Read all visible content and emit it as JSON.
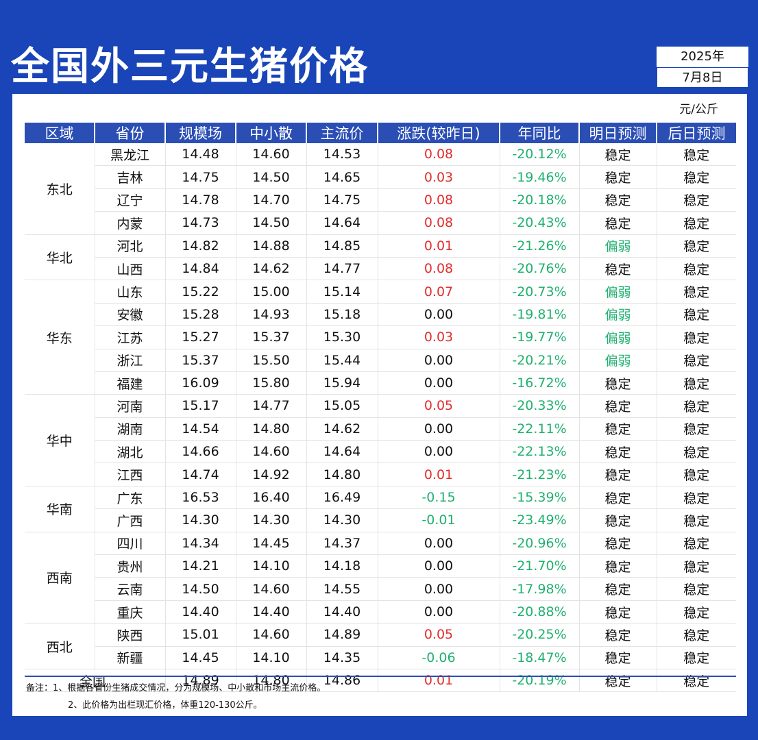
{
  "title": "全国外三元生猪价格",
  "date": {
    "year": "2025年",
    "day": "7月8日"
  },
  "unit": "元/公斤",
  "headers": [
    "区域",
    "省份",
    "规模场",
    "中小散",
    "主流价",
    "涨跌(较昨日)",
    "年同比",
    "明日预测",
    "后日预测"
  ],
  "colors": {
    "up": "#e22d2d",
    "down": "#20b070",
    "header_bg": "#2a4eb4",
    "page_bg": "#1a45b8"
  },
  "regions": [
    {
      "name": "东北",
      "rows": [
        {
          "province": "黑龙江",
          "large": "14.48",
          "small": "14.60",
          "main": "14.53",
          "change": "0.08",
          "change_dir": "up",
          "yoy": "-20.12%",
          "tomorrow": "稳定",
          "tomorrow_dir": "flat",
          "after": "稳定"
        },
        {
          "province": "吉林",
          "large": "14.75",
          "small": "14.50",
          "main": "14.65",
          "change": "0.03",
          "change_dir": "up",
          "yoy": "-19.46%",
          "tomorrow": "稳定",
          "tomorrow_dir": "flat",
          "after": "稳定"
        },
        {
          "province": "辽宁",
          "large": "14.78",
          "small": "14.70",
          "main": "14.75",
          "change": "0.08",
          "change_dir": "up",
          "yoy": "-20.18%",
          "tomorrow": "稳定",
          "tomorrow_dir": "flat",
          "after": "稳定"
        },
        {
          "province": "内蒙",
          "large": "14.73",
          "small": "14.50",
          "main": "14.64",
          "change": "0.08",
          "change_dir": "up",
          "yoy": "-20.43%",
          "tomorrow": "稳定",
          "tomorrow_dir": "flat",
          "after": "稳定"
        }
      ]
    },
    {
      "name": "华北",
      "rows": [
        {
          "province": "河北",
          "large": "14.82",
          "small": "14.88",
          "main": "14.85",
          "change": "0.01",
          "change_dir": "up",
          "yoy": "-21.26%",
          "tomorrow": "偏弱",
          "tomorrow_dir": "down",
          "after": "稳定"
        },
        {
          "province": "山西",
          "large": "14.84",
          "small": "14.62",
          "main": "14.77",
          "change": "0.08",
          "change_dir": "up",
          "yoy": "-20.76%",
          "tomorrow": "稳定",
          "tomorrow_dir": "flat",
          "after": "稳定"
        }
      ]
    },
    {
      "name": "华东",
      "rows": [
        {
          "province": "山东",
          "large": "15.22",
          "small": "15.00",
          "main": "15.14",
          "change": "0.07",
          "change_dir": "up",
          "yoy": "-20.73%",
          "tomorrow": "偏弱",
          "tomorrow_dir": "down",
          "after": "稳定"
        },
        {
          "province": "安徽",
          "large": "15.28",
          "small": "14.93",
          "main": "15.18",
          "change": "0.00",
          "change_dir": "flat",
          "yoy": "-19.81%",
          "tomorrow": "偏弱",
          "tomorrow_dir": "down",
          "after": "稳定"
        },
        {
          "province": "江苏",
          "large": "15.27",
          "small": "15.37",
          "main": "15.30",
          "change": "0.03",
          "change_dir": "up",
          "yoy": "-19.77%",
          "tomorrow": "偏弱",
          "tomorrow_dir": "down",
          "after": "稳定"
        },
        {
          "province": "浙江",
          "large": "15.37",
          "small": "15.50",
          "main": "15.44",
          "change": "0.00",
          "change_dir": "flat",
          "yoy": "-20.21%",
          "tomorrow": "偏弱",
          "tomorrow_dir": "down",
          "after": "稳定"
        },
        {
          "province": "福建",
          "large": "16.09",
          "small": "15.80",
          "main": "15.94",
          "change": "0.00",
          "change_dir": "flat",
          "yoy": "-16.72%",
          "tomorrow": "稳定",
          "tomorrow_dir": "flat",
          "after": "稳定"
        }
      ]
    },
    {
      "name": "华中",
      "rows": [
        {
          "province": "河南",
          "large": "15.17",
          "small": "14.77",
          "main": "15.05",
          "change": "0.05",
          "change_dir": "up",
          "yoy": "-20.33%",
          "tomorrow": "稳定",
          "tomorrow_dir": "flat",
          "after": "稳定"
        },
        {
          "province": "湖南",
          "large": "14.54",
          "small": "14.80",
          "main": "14.62",
          "change": "0.00",
          "change_dir": "flat",
          "yoy": "-22.11%",
          "tomorrow": "稳定",
          "tomorrow_dir": "flat",
          "after": "稳定"
        },
        {
          "province": "湖北",
          "large": "14.66",
          "small": "14.60",
          "main": "14.64",
          "change": "0.00",
          "change_dir": "flat",
          "yoy": "-22.13%",
          "tomorrow": "稳定",
          "tomorrow_dir": "flat",
          "after": "稳定"
        },
        {
          "province": "江西",
          "large": "14.74",
          "small": "14.92",
          "main": "14.80",
          "change": "0.01",
          "change_dir": "up",
          "yoy": "-21.23%",
          "tomorrow": "稳定",
          "tomorrow_dir": "flat",
          "after": "稳定"
        }
      ]
    },
    {
      "name": "华南",
      "rows": [
        {
          "province": "广东",
          "large": "16.53",
          "small": "16.40",
          "main": "16.49",
          "change": "-0.15",
          "change_dir": "down",
          "yoy": "-15.39%",
          "tomorrow": "稳定",
          "tomorrow_dir": "flat",
          "after": "稳定"
        },
        {
          "province": "广西",
          "large": "14.30",
          "small": "14.30",
          "main": "14.30",
          "change": "-0.01",
          "change_dir": "down",
          "yoy": "-23.49%",
          "tomorrow": "稳定",
          "tomorrow_dir": "flat",
          "after": "稳定"
        }
      ]
    },
    {
      "name": "西南",
      "rows": [
        {
          "province": "四川",
          "large": "14.34",
          "small": "14.45",
          "main": "14.37",
          "change": "0.00",
          "change_dir": "flat",
          "yoy": "-20.96%",
          "tomorrow": "稳定",
          "tomorrow_dir": "flat",
          "after": "稳定"
        },
        {
          "province": "贵州",
          "large": "14.21",
          "small": "14.10",
          "main": "14.18",
          "change": "0.00",
          "change_dir": "flat",
          "yoy": "-21.70%",
          "tomorrow": "稳定",
          "tomorrow_dir": "flat",
          "after": "稳定"
        },
        {
          "province": "云南",
          "large": "14.50",
          "small": "14.60",
          "main": "14.55",
          "change": "0.00",
          "change_dir": "flat",
          "yoy": "-17.98%",
          "tomorrow": "稳定",
          "tomorrow_dir": "flat",
          "after": "稳定"
        },
        {
          "province": "重庆",
          "large": "14.40",
          "small": "14.40",
          "main": "14.40",
          "change": "0.00",
          "change_dir": "flat",
          "yoy": "-20.88%",
          "tomorrow": "稳定",
          "tomorrow_dir": "flat",
          "after": "稳定"
        }
      ]
    },
    {
      "name": "西北",
      "rows": [
        {
          "province": "陕西",
          "large": "15.01",
          "small": "14.60",
          "main": "14.89",
          "change": "0.05",
          "change_dir": "up",
          "yoy": "-20.25%",
          "tomorrow": "稳定",
          "tomorrow_dir": "flat",
          "after": "稳定"
        },
        {
          "province": "新疆",
          "large": "14.45",
          "small": "14.10",
          "main": "14.35",
          "change": "-0.06",
          "change_dir": "down",
          "yoy": "-18.47%",
          "tomorrow": "稳定",
          "tomorrow_dir": "flat",
          "after": "稳定"
        }
      ]
    }
  ],
  "total": {
    "label": "全国",
    "large": "14.89",
    "small": "14.80",
    "main": "14.86",
    "change": "0.01",
    "change_dir": "up",
    "yoy": "-20.19%",
    "tomorrow": "稳定",
    "tomorrow_dir": "flat",
    "after": "稳定"
  },
  "notes": [
    "备注：1、根据各省份生猪成交情况，分为规模场、中小散和市场主流价格。",
    "2、此价格为出栏现汇价格，体重120-130公斤。"
  ]
}
